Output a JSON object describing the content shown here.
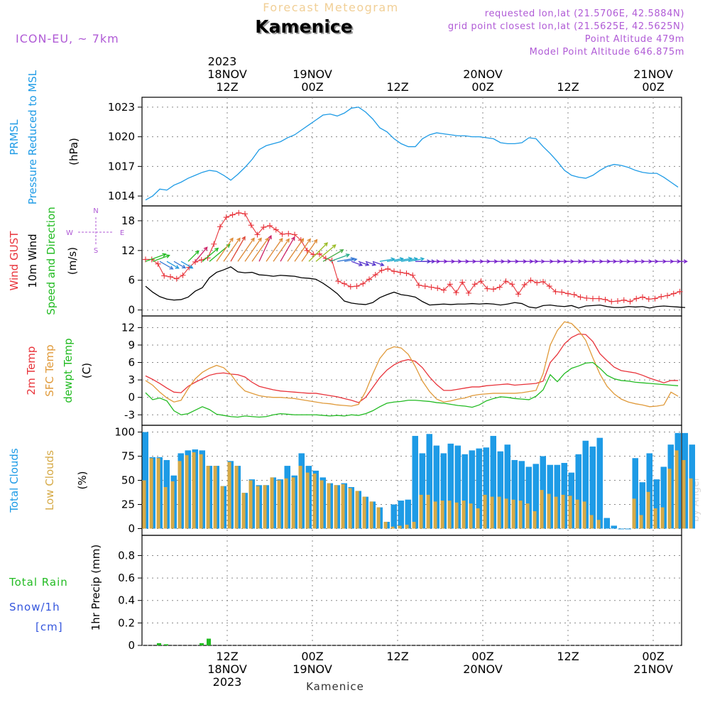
{
  "header": {
    "subtitle": "Forecast Meteogram",
    "location": "Kamenice",
    "model": "ICON-EU, ~ 7km",
    "requested": "requested lon,lat (21.5706E, 42.5884N)",
    "gridpoint": "grid point closest lon,lat (21.5625E, 42.5625N)",
    "point_alt": "Point Altitude 479m",
    "model_alt": "Model Point Altitude 646.875m",
    "footer": "Kamenice",
    "watermark": "by Angel"
  },
  "time_axis": {
    "top_year": "2023",
    "top_labels": [
      {
        "h": 12,
        "l1": "18NOV",
        "l2": "12Z"
      },
      {
        "h": 24,
        "l1": "19NOV",
        "l2": "00Z"
      },
      {
        "h": 36,
        "l1": "",
        "l2": "12Z"
      },
      {
        "h": 48,
        "l1": "20NOV",
        "l2": "00Z"
      },
      {
        "h": 60,
        "l1": "",
        "l2": "12Z"
      },
      {
        "h": 72,
        "l1": "21NOV",
        "l2": "00Z"
      }
    ],
    "bottom_labels": [
      {
        "h": 12,
        "l1": "12Z",
        "l2": "18NOV",
        "l3": "2023"
      },
      {
        "h": 24,
        "l1": "00Z",
        "l2": "19NOV",
        "l3": ""
      },
      {
        "h": 36,
        "l1": "12Z",
        "l2": "",
        "l3": ""
      },
      {
        "h": 48,
        "l1": "00Z",
        "l2": "20NOV",
        "l3": ""
      },
      {
        "h": 60,
        "l1": "12Z",
        "l2": "",
        "l3": ""
      },
      {
        "h": 72,
        "l1": "00Z",
        "l2": "21NOV",
        "l3": ""
      }
    ]
  },
  "chart_data": [
    {
      "type": "line",
      "name": "pressure",
      "ylabel_lines": [
        {
          "text": "PRMSL",
          "color": "#1e9be6"
        },
        {
          "text": "Pressure Reduced to MSL",
          "color": "#1e9be6"
        },
        {
          "text": "(hPa)",
          "color": "#000000"
        }
      ],
      "yticks": [
        "1014",
        "1017",
        "1020",
        "1023"
      ],
      "ylim": [
        1013.0,
        1024.0
      ],
      "color": "#1e9be6",
      "x": [
        0,
        1,
        2,
        3,
        4,
        5,
        6,
        7,
        8,
        9,
        10,
        11,
        12,
        13,
        14,
        15,
        16,
        17,
        18,
        19,
        20,
        21,
        22,
        23,
        24,
        25,
        26,
        27,
        28,
        29,
        30,
        31,
        32,
        33,
        34,
        35,
        36,
        37,
        38,
        39,
        40,
        41,
        42,
        43,
        44,
        45,
        46,
        47,
        48,
        49,
        50,
        51,
        52,
        53,
        54,
        55,
        56,
        57,
        58,
        59,
        60,
        61,
        62,
        63,
        64,
        65,
        66,
        67,
        68,
        69,
        70,
        71,
        72,
        73,
        74,
        75
      ],
      "values": [
        1013.6,
        1014.0,
        1014.7,
        1014.6,
        1015.1,
        1015.4,
        1015.8,
        1016.1,
        1016.4,
        1016.6,
        1016.5,
        1016.1,
        1015.6,
        1016.2,
        1016.9,
        1017.7,
        1018.7,
        1019.1,
        1019.3,
        1019.5,
        1019.9,
        1020.2,
        1020.7,
        1021.2,
        1021.7,
        1022.2,
        1022.3,
        1022.1,
        1022.4,
        1022.9,
        1023.0,
        1022.5,
        1021.8,
        1020.9,
        1020.5,
        1019.8,
        1019.3,
        1019.0,
        1019.0,
        1019.8,
        1020.2,
        1020.4,
        1020.3,
        1020.2,
        1020.1,
        1020.1,
        1020.0,
        1020.0,
        1019.9,
        1019.8,
        1019.4,
        1019.3,
        1019.3,
        1019.4,
        1019.9,
        1019.8,
        1019.0,
        1018.3,
        1017.5,
        1016.6,
        1016.1,
        1015.9,
        1015.8,
        1016.1,
        1016.6,
        1017.0,
        1017.2,
        1017.1,
        1016.9,
        1016.6,
        1016.4,
        1016.3,
        1016.3,
        1015.9,
        1015.4,
        1014.9
      ]
    },
    {
      "type": "line",
      "name": "wind",
      "ylabel_lines": [
        {
          "text": "Wind GUST",
          "color": "#e8333a"
        },
        {
          "text": "10m Wind",
          "color": "#000000"
        },
        {
          "text": "Speed and Direction",
          "color": "#22bb22"
        },
        {
          "text": "(m/s)",
          "color": "#000000"
        }
      ],
      "compass": [
        "N",
        "S",
        "W",
        "E"
      ],
      "yticks": [
        "0",
        "6",
        "12",
        "18"
      ],
      "ylim": [
        -1.2,
        21.0
      ],
      "series": [
        {
          "name": "Wind GUST",
          "color": "#e8333a",
          "values": [
            10.2,
            10.2,
            9.3,
            6.9,
            6.7,
            6.3,
            7.0,
            8.6,
            9.7,
            10.1,
            10.5,
            13.3,
            16.8,
            18.7,
            19.2,
            19.6,
            19.4,
            17.1,
            15.2,
            16.7,
            17.0,
            16.2,
            15.3,
            15.4,
            15.2,
            14.1,
            12.0,
            11.2,
            11.3,
            10.4,
            10.0,
            5.8,
            5.3,
            4.7,
            4.8,
            5.3,
            6.2,
            7.1,
            8.0,
            8.3,
            7.8,
            7.6,
            7.4,
            7.0,
            5.0,
            4.8,
            4.6,
            4.4,
            4.0,
            5.2,
            3.5,
            5.6,
            3.4,
            5.2,
            5.8,
            4.3,
            4.2,
            4.6,
            5.8,
            5.2,
            3.2,
            5.1,
            6.0,
            5.5,
            5.7,
            4.8,
            3.7,
            3.6,
            3.3,
            3.1,
            2.6,
            2.4,
            2.3,
            2.3,
            2.1,
            1.7,
            1.8,
            2.0,
            1.7,
            2.3,
            2.6,
            2.2,
            2.3,
            2.7,
            2.9,
            3.3,
            3.7
          ]
        },
        {
          "name": "10m Wind",
          "color": "#000000",
          "values": [
            4.8,
            3.6,
            2.7,
            2.2,
            2.0,
            2.1,
            2.6,
            3.8,
            4.5,
            6.5,
            7.6,
            8.1,
            8.7,
            7.7,
            7.5,
            7.6,
            7.1,
            7.0,
            6.8,
            7.0,
            6.9,
            6.8,
            6.5,
            6.4,
            6.2,
            5.4,
            4.4,
            3.3,
            1.8,
            1.4,
            1.2,
            1.1,
            1.5,
            2.5,
            3.1,
            3.6,
            3.1,
            2.9,
            2.6,
            1.7,
            1.0,
            1.1,
            1.2,
            1.1,
            1.2,
            1.2,
            1.3,
            1.2,
            1.3,
            1.2,
            1.0,
            1.2,
            1.5,
            1.3,
            0.6,
            0.4,
            0.9,
            1.0,
            0.8,
            0.7,
            0.9,
            0.4,
            0.8,
            0.9,
            1.0,
            0.7,
            0.5,
            0.5,
            0.7,
            0.6,
            0.7,
            0.4,
            0.7,
            0.8,
            0.7,
            0.6,
            0.5
          ]
        }
      ],
      "gust_x_step": 0.875,
      "wind_x_step": 1.0,
      "arrow_row_value": 9.8,
      "arrow_colors": [
        "#22bb22",
        "#22bb22",
        "#3a7bd5",
        "#2299dd",
        "#3a7bd5",
        "#2299dd",
        "#22bb22",
        "#cc2266",
        "#22bb22",
        "#22bb22",
        "#dd8833",
        "#dd8833",
        "#dd4433",
        "#dd8833",
        "#dd8833",
        "#dd8833",
        "#cc2266",
        "#dd8833",
        "#dd8833",
        "#cc2266",
        "#dd8833",
        "#dd8833",
        "#dd8833",
        "#99bb22",
        "#99bb22",
        "#44aa44",
        "#22aa88",
        "#3a7bd5",
        "#3a7bd5",
        "#5533cc",
        "#5533cc",
        "#5533cc",
        "#5533cc",
        "#22aacc",
        "#22aacc",
        "#22aacc",
        "#22aacc",
        "#22aacc",
        "#5533cc",
        "#5533cc",
        "#7722cc",
        "#7722cc",
        "#7722cc",
        "#7722cc",
        "#7722cc",
        "#7722cc",
        "#7722cc",
        "#7722cc",
        "#7722cc",
        "#7722cc",
        "#7722cc",
        "#7722cc",
        "#7722cc",
        "#7722cc",
        "#7722cc",
        "#7722cc",
        "#7722cc",
        "#7722cc",
        "#7722cc",
        "#7722cc",
        "#7722cc",
        "#7722cc",
        "#7722cc",
        "#7722cc",
        "#7722cc",
        "#7722cc",
        "#7722cc",
        "#7722cc",
        "#7722cc",
        "#7722cc",
        "#7722cc",
        "#7722cc",
        "#7722cc",
        "#7722cc",
        "#7722cc",
        "#7722cc"
      ],
      "arrow_dirs": [
        250,
        250,
        300,
        300,
        300,
        300,
        225,
        220,
        230,
        230,
        215,
        215,
        210,
        215,
        215,
        215,
        205,
        215,
        215,
        210,
        215,
        215,
        215,
        225,
        230,
        240,
        250,
        260,
        260,
        290,
        290,
        290,
        290,
        260,
        260,
        260,
        260,
        260,
        270,
        270,
        270,
        270,
        270,
        270,
        270,
        270,
        270,
        270,
        270,
        270,
        270,
        270,
        270,
        270,
        270,
        270,
        270,
        270,
        270,
        270,
        270,
        270,
        270,
        270,
        270,
        270,
        270,
        270,
        270,
        270,
        270,
        270,
        270,
        270,
        270,
        270
      ]
    },
    {
      "type": "line",
      "name": "temperature",
      "ylabel_lines": [
        {
          "text": "2m Temp",
          "color": "#e8333a"
        },
        {
          "text": "SFC Temp",
          "color": "#e09a3a"
        },
        {
          "text": "dewpt Temp",
          "color": "#22bb22"
        },
        {
          "text": "(C)",
          "color": "#000000"
        }
      ],
      "yticks": [
        "-3",
        "0",
        "3",
        "6",
        "9",
        "12"
      ],
      "ylim": [
        -4.8,
        14.0
      ],
      "series": [
        {
          "name": "2m Temp",
          "color": "#e8333a",
          "values": [
            3.7,
            3.1,
            2.4,
            1.6,
            0.9,
            0.8,
            1.9,
            2.6,
            3.2,
            3.8,
            4.1,
            4.2,
            4.0,
            3.9,
            3.5,
            2.6,
            1.9,
            1.6,
            1.3,
            1.1,
            1.0,
            0.9,
            0.8,
            0.7,
            0.7,
            0.5,
            0.3,
            0.1,
            -0.2,
            -0.5,
            -0.9,
            0.0,
            1.7,
            3.4,
            4.7,
            5.6,
            6.2,
            6.5,
            6.2,
            5.1,
            3.5,
            2.2,
            1.2,
            1.2,
            1.4,
            1.6,
            1.8,
            1.8,
            2.0,
            2.1,
            2.2,
            2.3,
            2.1,
            2.2,
            2.3,
            2.4,
            2.8,
            6.0,
            7.4,
            9.2,
            10.3,
            10.9,
            10.8,
            9.6,
            7.5,
            6.3,
            5.2,
            4.6,
            4.4,
            4.2,
            3.8,
            3.3,
            2.9,
            2.5,
            2.9,
            2.9
          ]
        },
        {
          "name": "SFC Temp",
          "color": "#e09a3a",
          "values": [
            2.9,
            2.1,
            0.9,
            -0.1,
            -0.8,
            -0.5,
            1.5,
            3.2,
            4.3,
            5.0,
            5.5,
            5.1,
            4.0,
            2.3,
            1.1,
            0.7,
            0.3,
            0.1,
            0.0,
            0.0,
            -0.1,
            -0.2,
            -0.4,
            -0.6,
            -0.8,
            -1.0,
            -1.1,
            -1.3,
            -1.4,
            -1.5,
            -1.2,
            1.0,
            4.0,
            6.7,
            8.2,
            8.7,
            8.5,
            7.4,
            5.3,
            2.8,
            1.0,
            -0.3,
            -0.8,
            -0.6,
            -0.3,
            -0.1,
            0.3,
            0.5,
            0.6,
            0.7,
            0.7,
            0.7,
            0.7,
            0.8,
            1.0,
            1.2,
            4.1,
            9.0,
            11.5,
            13.0,
            12.7,
            11.5,
            9.8,
            6.8,
            4.0,
            1.9,
            0.6,
            -0.3,
            -0.8,
            -1.1,
            -1.3,
            -1.6,
            -1.5,
            -1.3,
            0.9,
            0.2
          ]
        },
        {
          "name": "dewpt Temp",
          "color": "#22bb22",
          "values": [
            0.8,
            -0.4,
            -0.1,
            -0.6,
            -2.3,
            -3.0,
            -2.8,
            -2.2,
            -1.6,
            -2.1,
            -2.9,
            -3.1,
            -3.3,
            -3.4,
            -3.2,
            -3.3,
            -3.4,
            -3.3,
            -3.0,
            -2.8,
            -2.9,
            -3.0,
            -3.0,
            -3.0,
            -3.0,
            -3.1,
            -3.2,
            -3.1,
            -3.2,
            -3.0,
            -3.1,
            -2.8,
            -2.3,
            -1.6,
            -1.0,
            -0.8,
            -0.7,
            -0.5,
            -0.5,
            -0.6,
            -0.7,
            -0.9,
            -1.0,
            -1.2,
            -1.4,
            -1.5,
            -1.7,
            -1.3,
            -0.6,
            -0.2,
            0.1,
            0.0,
            -0.2,
            -0.3,
            -0.4,
            0.2,
            1.3,
            3.9,
            2.7,
            4.1,
            5.0,
            5.4,
            5.9,
            6.0,
            5.0,
            3.8,
            3.2,
            2.9,
            2.8,
            2.6,
            2.5,
            2.4,
            2.3,
            2.2,
            2.1,
            2.0
          ]
        }
      ]
    },
    {
      "type": "bar",
      "name": "clouds",
      "ylabel_lines": [
        {
          "text": "Total Clouds",
          "color": "#1e9be6"
        },
        {
          "text": "Low Clouds",
          "color": "#d6aa47"
        },
        {
          "text": "(%)",
          "color": "#000000"
        }
      ],
      "yticks": [
        "0",
        "25",
        "50",
        "75",
        "100"
      ],
      "ylim": [
        -7,
        107
      ],
      "series": [
        {
          "name": "Total Clouds",
          "color": "#1e9be6",
          "values": [
            100,
            74,
            74,
            71,
            55,
            78,
            81,
            82,
            81,
            65,
            65,
            44,
            70,
            65,
            37,
            51,
            45,
            45,
            53,
            51,
            65,
            55,
            78,
            65,
            60,
            53,
            47,
            45,
            47,
            43,
            39,
            33,
            28,
            22,
            7,
            25,
            29,
            30,
            96,
            78,
            98,
            86,
            78,
            88,
            86,
            77,
            81,
            83,
            84,
            96,
            80,
            87,
            71,
            70,
            64,
            67,
            75,
            66,
            66,
            68,
            58,
            77,
            91,
            85,
            94,
            11,
            3,
            0,
            0,
            73,
            48,
            78,
            51,
            64,
            87,
            99,
            99,
            87
          ]
        },
        {
          "name": "Low Clouds",
          "color": "#d6aa47",
          "values": [
            50,
            73,
            73,
            43,
            49,
            70,
            76,
            79,
            77,
            65,
            65,
            44,
            69,
            65,
            37,
            50,
            44,
            45,
            53,
            50,
            52,
            53,
            65,
            58,
            57,
            50,
            47,
            45,
            46,
            42,
            39,
            33,
            28,
            22,
            7,
            2,
            3,
            4,
            7,
            35,
            35,
            28,
            29,
            29,
            27,
            29,
            26,
            21,
            35,
            33,
            33,
            31,
            30,
            29,
            26,
            18,
            40,
            36,
            33,
            35,
            34,
            30,
            28,
            14,
            9,
            0,
            0,
            0,
            0,
            31,
            14,
            38,
            21,
            22,
            62,
            81,
            71,
            52
          ]
        }
      ],
      "x_step": 1.0
    },
    {
      "type": "bar",
      "name": "precip",
      "ylabel_lines": [
        {
          "text": "1hr Precip (mm)",
          "color": "#000000"
        }
      ],
      "legend": [
        {
          "text": "Total  Rain",
          "color": "#22bb22"
        },
        {
          "text": "Snow/1h",
          "color": "#3355dd"
        },
        {
          "text": "[cm]",
          "color": "#3355dd"
        }
      ],
      "yticks": [
        "0",
        "0.2",
        "0.4",
        "0.6",
        "0.8"
      ],
      "ylim": [
        0,
        0.98
      ],
      "color": "#22bb22",
      "bars": [
        {
          "h": 2,
          "value": 0.02
        },
        {
          "h": 3,
          "value": 0.01
        },
        {
          "h": 8,
          "value": 0.02
        },
        {
          "h": 9,
          "value": 0.06
        }
      ]
    }
  ]
}
